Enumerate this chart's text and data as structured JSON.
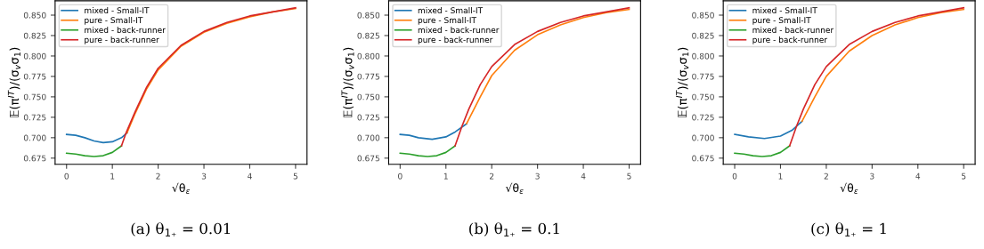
{
  "chart_data": [
    {
      "type": "line",
      "title": "(a) θ$_{1₊}$ = 0.01",
      "xlabel": "√θ$_{ε}$",
      "ylabel": "𝔼(π$^{IT}$)/(σ$_{v}$σ$_{1}$)",
      "xlim": [
        -0.25,
        5.25
      ],
      "xticks": [
        0,
        1,
        2,
        3,
        4,
        5
      ],
      "ylim": [
        0.6674,
        0.8676
      ],
      "yticks": [
        {
          "value": 0.675,
          "label": "0.675"
        },
        {
          "value": 0.7,
          "label": "0.700"
        },
        {
          "value": 0.725,
          "label": "0.725"
        },
        {
          "value": 0.75,
          "label": "0.750"
        },
        {
          "value": 0.775,
          "label": "0.775"
        },
        {
          "value": 0.8,
          "label": "0.800"
        },
        {
          "value": 0.825,
          "label": "0.825"
        },
        {
          "value": 0.85,
          "label": "0.850"
        }
      ],
      "grid": false,
      "legend": "top left",
      "series": [
        {
          "name": "mixed - Small-IT",
          "color": "#1f77b4",
          "x": [
            0,
            0.2,
            0.4,
            0.6,
            0.8,
            1.0,
            1.2,
            1.32
          ],
          "values": [
            0.704,
            0.703,
            0.7,
            0.696,
            0.694,
            0.695,
            0.7,
            0.706
          ]
        },
        {
          "name": "pure - Small-IT",
          "color": "#ff7f0e",
          "x": [
            1.32,
            1.5,
            1.75,
            2,
            2.5,
            3,
            3.5,
            4,
            4.5,
            5
          ],
          "values": [
            0.706,
            0.73,
            0.76,
            0.783,
            0.812,
            0.829,
            0.84,
            0.848,
            0.854,
            0.858
          ]
        },
        {
          "name": "mixed - back-runner",
          "color": "#2ca02c",
          "x": [
            0,
            0.2,
            0.4,
            0.6,
            0.8,
            1.0,
            1.2
          ],
          "values": [
            0.681,
            0.68,
            0.678,
            0.677,
            0.678,
            0.682,
            0.69
          ]
        },
        {
          "name": "pure - back-runner",
          "color": "#d62728",
          "x": [
            1.2,
            1.3,
            1.5,
            1.75,
            2,
            2.5,
            3,
            3.5,
            4,
            4.5,
            5
          ],
          "values": [
            0.69,
            0.706,
            0.732,
            0.762,
            0.785,
            0.813,
            0.83,
            0.841,
            0.849,
            0.854,
            0.859
          ]
        }
      ]
    },
    {
      "type": "line",
      "title": "(b) θ$_{1₊}$ = 0.1",
      "xlabel": "√θ$_{ε}$",
      "ylabel": "𝔼(π$^{IT}$)/(σ$_{v}$σ$_{1}$)",
      "xlim": [
        -0.25,
        5.25
      ],
      "xticks": [
        0,
        1,
        2,
        3,
        4,
        5
      ],
      "ylim": [
        0.6674,
        0.8676
      ],
      "yticks": [
        {
          "value": 0.675,
          "label": "0.675"
        },
        {
          "value": 0.7,
          "label": "0.700"
        },
        {
          "value": 0.725,
          "label": "0.725"
        },
        {
          "value": 0.75,
          "label": "0.750"
        },
        {
          "value": 0.775,
          "label": "0.775"
        },
        {
          "value": 0.8,
          "label": "0.800"
        },
        {
          "value": 0.825,
          "label": "0.825"
        },
        {
          "value": 0.85,
          "label": "0.850"
        }
      ],
      "grid": false,
      "legend": "top left",
      "series": [
        {
          "name": "mixed - Small-IT",
          "color": "#1f77b4",
          "x": [
            0,
            0.2,
            0.4,
            0.7,
            1.0,
            1.2,
            1.45
          ],
          "values": [
            0.704,
            0.703,
            0.7,
            0.698,
            0.701,
            0.707,
            0.717
          ]
        },
        {
          "name": "pure - Small-IT",
          "color": "#ff7f0e",
          "x": [
            1.45,
            1.75,
            2,
            2.5,
            3,
            3.5,
            4,
            4.5,
            5
          ],
          "values": [
            0.717,
            0.75,
            0.776,
            0.807,
            0.826,
            0.838,
            0.847,
            0.853,
            0.857
          ]
        },
        {
          "name": "mixed - back-runner",
          "color": "#2ca02c",
          "x": [
            0,
            0.2,
            0.4,
            0.6,
            0.8,
            1.0,
            1.2
          ],
          "values": [
            0.681,
            0.68,
            0.678,
            0.677,
            0.678,
            0.682,
            0.69
          ]
        },
        {
          "name": "pure - back-runner",
          "color": "#d62728",
          "x": [
            1.2,
            1.35,
            1.5,
            1.75,
            2,
            2.5,
            3,
            3.5,
            4,
            4.5,
            5
          ],
          "values": [
            0.69,
            0.714,
            0.735,
            0.765,
            0.787,
            0.814,
            0.83,
            0.841,
            0.849,
            0.854,
            0.859
          ]
        }
      ]
    },
    {
      "type": "line",
      "title": "(c) θ$_{1₊}$ = 1",
      "xlabel": "√θ$_{ε}$",
      "ylabel": "𝔼(π$^{IT}$)/(σ$_{v}$σ$_{1}$)",
      "xlim": [
        -0.25,
        5.25
      ],
      "xticks": [
        0,
        1,
        2,
        3,
        4,
        5
      ],
      "ylim": [
        0.6674,
        0.8676
      ],
      "yticks": [
        {
          "value": 0.675,
          "label": "0.675"
        },
        {
          "value": 0.7,
          "label": "0.700"
        },
        {
          "value": 0.725,
          "label": "0.725"
        },
        {
          "value": 0.75,
          "label": "0.750"
        },
        {
          "value": 0.775,
          "label": "0.775"
        },
        {
          "value": 0.8,
          "label": "0.800"
        },
        {
          "value": 0.825,
          "label": "0.825"
        },
        {
          "value": 0.85,
          "label": "0.850"
        }
      ],
      "grid": false,
      "legend": "top left",
      "series": [
        {
          "name": "mixed - Small-IT",
          "color": "#1f77b4",
          "x": [
            0,
            0.3,
            0.65,
            1.0,
            1.25,
            1.47
          ],
          "values": [
            0.704,
            0.701,
            0.699,
            0.702,
            0.709,
            0.72
          ]
        },
        {
          "name": "pure - Small-IT",
          "color": "#ff7f0e",
          "x": [
            1.47,
            1.75,
            2,
            2.5,
            3,
            3.5,
            4,
            4.5,
            5
          ],
          "values": [
            0.72,
            0.75,
            0.775,
            0.806,
            0.825,
            0.838,
            0.847,
            0.853,
            0.857
          ]
        },
        {
          "name": "mixed - back-runner",
          "color": "#2ca02c",
          "x": [
            0,
            0.2,
            0.4,
            0.6,
            0.8,
            1.0,
            1.2
          ],
          "values": [
            0.681,
            0.68,
            0.678,
            0.677,
            0.678,
            0.682,
            0.69
          ]
        },
        {
          "name": "pure - back-runner",
          "color": "#d62728",
          "x": [
            1.2,
            1.35,
            1.5,
            1.75,
            2,
            2.5,
            3,
            3.5,
            4,
            4.5,
            5
          ],
          "values": [
            0.69,
            0.714,
            0.735,
            0.765,
            0.787,
            0.814,
            0.83,
            0.841,
            0.849,
            0.854,
            0.859
          ]
        }
      ]
    }
  ]
}
